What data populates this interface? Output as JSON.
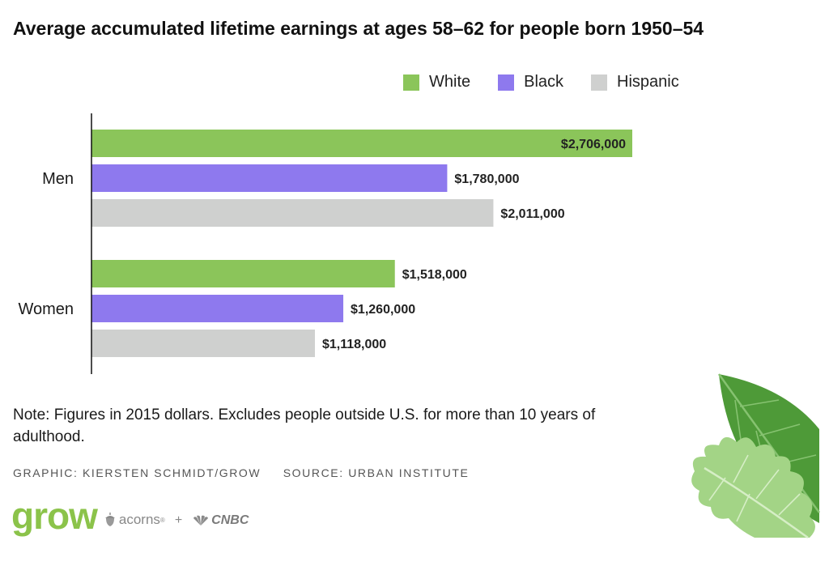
{
  "title": "Average accumulated lifetime earnings at ages 58–62 for people born 1950–54",
  "legend": [
    {
      "label": "White",
      "color": "#8bc55a"
    },
    {
      "label": "Black",
      "color": "#8e79ee"
    },
    {
      "label": "Hispanic",
      "color": "#cfd0cf"
    }
  ],
  "chart_data": {
    "type": "bar",
    "orientation": "horizontal",
    "title": "Average accumulated lifetime earnings at ages 58–62 for people born 1950–54",
    "categories": [
      "Men",
      "Women"
    ],
    "series": [
      {
        "name": "White",
        "color": "#8bc55a",
        "values": [
          2706000,
          1518000
        ],
        "labels": [
          "$2,706,000",
          "$1,518,000"
        ]
      },
      {
        "name": "Black",
        "color": "#8e79ee",
        "values": [
          1780000,
          1260000
        ],
        "labels": [
          "$1,780,000",
          "$1,260,000"
        ]
      },
      {
        "name": "Hispanic",
        "color": "#cfd0cf",
        "values": [
          2011000,
          1118000
        ],
        "labels": [
          "$2,011,000",
          "$1,118,000"
        ]
      }
    ],
    "xlim": [
      0,
      2706000
    ],
    "grid": false,
    "legend_position": "top-right"
  },
  "note": "Note: Figures in 2015 dollars. Excludes people outside U.S. for more than 10 years of adulthood.",
  "credits": {
    "graphic": "GRAPHIC: KIERSTEN SCHMIDT/GROW",
    "source": "SOURCE: URBAN INSTITUTE"
  },
  "brand": {
    "grow": "grow",
    "acorns": "acorns",
    "plus": "+",
    "cnbc": "CNBC"
  }
}
